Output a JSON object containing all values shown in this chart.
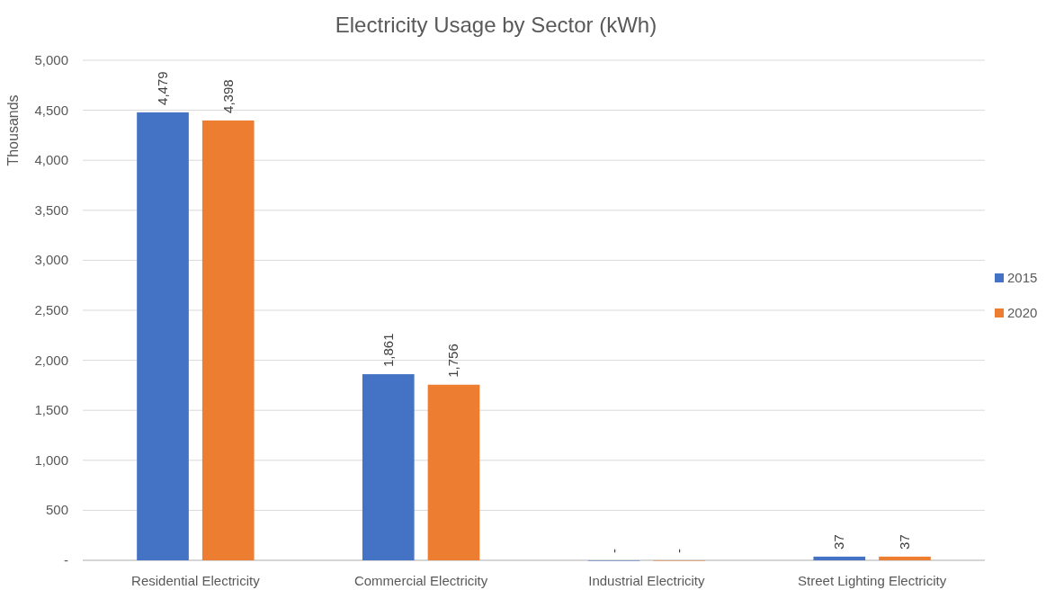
{
  "chart_data": {
    "type": "bar",
    "title": "Electricity Usage by Sector (kWh)",
    "ylabel": "Thousands",
    "categories": [
      "Residential Electricity",
      "Commercial Electricity",
      "Industrial Electricity",
      "Street Lighting Electricity"
    ],
    "series": [
      {
        "name": "2015",
        "color": "#4472c4",
        "values": [
          4479,
          1861,
          0,
          37
        ],
        "value_labels": [
          "4,479",
          "1,861",
          "-",
          "37"
        ]
      },
      {
        "name": "2020",
        "color": "#ed7d31",
        "values": [
          4398,
          1756,
          0,
          37
        ],
        "value_labels": [
          "4,398",
          "1,756",
          "-",
          "37"
        ]
      }
    ],
    "ylim": [
      0,
      5000
    ],
    "yticks": [
      {
        "value": 0,
        "label": "-"
      },
      500,
      {
        "value": 1000,
        "label": "1,000"
      },
      {
        "value": 1500,
        "label": "1,500"
      },
      {
        "value": 2000,
        "label": "2,000"
      },
      {
        "value": 2500,
        "label": "2,500"
      },
      {
        "value": 3000,
        "label": "3,000"
      },
      {
        "value": 3500,
        "label": "3,500"
      },
      {
        "value": 4000,
        "label": "4,000"
      },
      {
        "value": 4500,
        "label": "4,500"
      },
      {
        "value": 5000,
        "label": "5,000"
      }
    ],
    "grid": "y",
    "legend": "right"
  }
}
